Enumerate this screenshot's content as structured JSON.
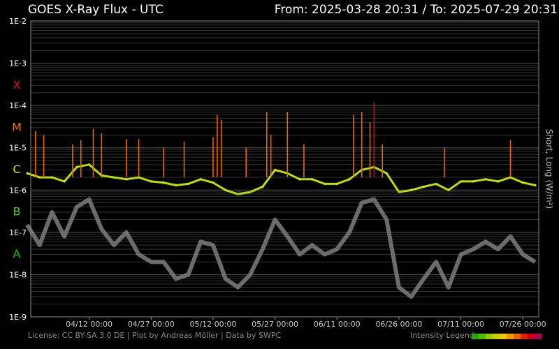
{
  "header": {
    "title": "GOES X-Ray Flux - UTC",
    "range": "From: 2025-03-28 20:31  /  To: 2025-07-29 20:31"
  },
  "footer": {
    "credits": "License: CC BY-SA 3.0 DE | Plot by Andreas Möller | Data by SWPC",
    "legend_label": "Intensity Legend"
  },
  "legend_colors": [
    "#22aa00",
    "#55bb00",
    "#99cc00",
    "#cccc00",
    "#eecc00",
    "#ee9900",
    "#ee6600",
    "#dd2200",
    "#cc0022",
    "#aa0055"
  ],
  "chart_data": {
    "type": "line",
    "title": "GOES X-Ray Flux - UTC",
    "ylabel": "Short, Long (W/m²)",
    "yscale": "log",
    "ylim": [
      1e-09,
      0.01
    ],
    "y_ticks": [
      "1E-2",
      "1E-3",
      "1E-4",
      "1E-5",
      "1E-6",
      "1E-7",
      "1E-8",
      "1E-9"
    ],
    "flare_classes": [
      {
        "label": "X",
        "value": "1e-4",
        "color": "#dd1111"
      },
      {
        "label": "M",
        "value": "1e-5",
        "color": "#ee7700"
      },
      {
        "label": "C",
        "value": "1e-6",
        "color": "#dddd00"
      },
      {
        "label": "B",
        "value": "1e-7",
        "color": "#55cc00"
      },
      {
        "label": "A",
        "value": "1e-8",
        "color": "#22bb00"
      }
    ],
    "xlim": [
      "2025-03-28 20:31",
      "2025-07-29 20:31"
    ],
    "x_ticks": [
      {
        "date": "2025-04-12",
        "label": "04/12 00:00"
      },
      {
        "date": "2025-04-27",
        "label": "04/27 00:00"
      },
      {
        "date": "2025-05-12",
        "label": "05/12 00:00"
      },
      {
        "date": "2025-05-27",
        "label": "05/27 00:00"
      },
      {
        "date": "2025-06-11",
        "label": "06/11 00:00"
      },
      {
        "date": "2025-06-26",
        "label": "06/26 00:00"
      },
      {
        "date": "2025-07-11",
        "label": "07/11 00:00"
      },
      {
        "date": "2025-07-26",
        "label": "07/26 00:00"
      }
    ],
    "series": [
      {
        "name": "Long",
        "dates": [
          "2025-03-28",
          "2025-03-31",
          "2025-04-03",
          "2025-04-06",
          "2025-04-09",
          "2025-04-12",
          "2025-04-15",
          "2025-04-18",
          "2025-04-21",
          "2025-04-24",
          "2025-04-27",
          "2025-04-30",
          "2025-05-03",
          "2025-05-06",
          "2025-05-09",
          "2025-05-12",
          "2025-05-15",
          "2025-05-18",
          "2025-05-21",
          "2025-05-24",
          "2025-05-27",
          "2025-05-30",
          "2025-06-02",
          "2025-06-05",
          "2025-06-08",
          "2025-06-11",
          "2025-06-14",
          "2025-06-17",
          "2025-06-20",
          "2025-06-23",
          "2025-06-26",
          "2025-06-29",
          "2025-07-02",
          "2025-07-05",
          "2025-07-08",
          "2025-07-11",
          "2025-07-14",
          "2025-07-17",
          "2025-07-20",
          "2025-07-23",
          "2025-07-26",
          "2025-07-29"
        ],
        "values": [
          2.5e-06,
          2e-06,
          2e-06,
          1.6e-06,
          3.5e-06,
          4e-06,
          2.2e-06,
          2e-06,
          1.8e-06,
          2e-06,
          1.6e-06,
          1.5e-06,
          1.3e-06,
          1.4e-06,
          1.8e-06,
          1.5e-06,
          1e-06,
          8e-07,
          9e-07,
          1.2e-06,
          3e-06,
          2.5e-06,
          1.8e-06,
          1.8e-06,
          1.4e-06,
          1.4e-06,
          1.8e-06,
          3e-06,
          3.5e-06,
          2.5e-06,
          9e-07,
          1e-06,
          1.2e-06,
          1.4e-06,
          1e-06,
          1.6e-06,
          1.6e-06,
          1.8e-06,
          1.6e-06,
          2e-06,
          1.5e-06,
          1.3e-06
        ]
      },
      {
        "name": "Short",
        "dates": [
          "2025-03-28",
          "2025-03-31",
          "2025-04-03",
          "2025-04-06",
          "2025-04-09",
          "2025-04-12",
          "2025-04-15",
          "2025-04-18",
          "2025-04-21",
          "2025-04-24",
          "2025-04-27",
          "2025-04-30",
          "2025-05-03",
          "2025-05-06",
          "2025-05-09",
          "2025-05-12",
          "2025-05-15",
          "2025-05-18",
          "2025-05-21",
          "2025-05-24",
          "2025-05-27",
          "2025-05-30",
          "2025-06-02",
          "2025-06-05",
          "2025-06-08",
          "2025-06-11",
          "2025-06-14",
          "2025-06-17",
          "2025-06-20",
          "2025-06-23",
          "2025-06-26",
          "2025-06-29",
          "2025-07-02",
          "2025-07-05",
          "2025-07-08",
          "2025-07-11",
          "2025-07-14",
          "2025-07-17",
          "2025-07-20",
          "2025-07-23",
          "2025-07-26",
          "2025-07-29"
        ],
        "values": [
          1.5e-07,
          5e-08,
          3e-07,
          8e-08,
          4e-07,
          6e-07,
          1.2e-07,
          5e-08,
          1e-07,
          3e-08,
          2e-08,
          2e-08,
          8e-09,
          1e-08,
          6e-08,
          5e-08,
          8e-09,
          5e-09,
          1e-08,
          4e-08,
          2e-07,
          8e-08,
          3e-08,
          5e-08,
          3e-08,
          4e-08,
          1e-07,
          5e-07,
          6e-07,
          2e-07,
          5e-09,
          3e-09,
          8e-09,
          2e-08,
          5e-09,
          3e-08,
          4e-08,
          6e-08,
          4e-08,
          8e-08,
          3e-08,
          2e-08
        ]
      }
    ],
    "flares": [
      {
        "date": "2025-03-30",
        "value": 2.5e-05
      },
      {
        "date": "2025-04-01",
        "value": 2e-05
      },
      {
        "date": "2025-04-08",
        "value": 1.2e-05
      },
      {
        "date": "2025-04-10",
        "value": 1.5e-05
      },
      {
        "date": "2025-04-13",
        "value": 2.8e-05
      },
      {
        "date": "2025-04-15",
        "value": 2.2e-05
      },
      {
        "date": "2025-04-21",
        "value": 1.6e-05
      },
      {
        "date": "2025-04-24",
        "value": 1.6e-05
      },
      {
        "date": "2025-04-30",
        "value": 1e-05
      },
      {
        "date": "2025-05-05",
        "value": 1.4e-05
      },
      {
        "date": "2025-05-12",
        "value": 1.8e-05
      },
      {
        "date": "2025-05-13",
        "value": 6e-05
      },
      {
        "date": "2025-05-14",
        "value": 4.5e-05
      },
      {
        "date": "2025-05-20",
        "value": 1e-05
      },
      {
        "date": "2025-05-25",
        "value": 7e-05
      },
      {
        "date": "2025-05-26",
        "value": 2e-05
      },
      {
        "date": "2025-05-30",
        "value": 7e-05
      },
      {
        "date": "2025-06-03",
        "value": 1.2e-05
      },
      {
        "date": "2025-06-15",
        "value": 6e-05
      },
      {
        "date": "2025-06-17",
        "value": 7e-05
      },
      {
        "date": "2025-06-19",
        "value": 4e-05
      },
      {
        "date": "2025-06-20",
        "value": 0.00012
      },
      {
        "date": "2025-06-22",
        "value": 1.2e-05
      },
      {
        "date": "2025-07-07",
        "value": 1e-05
      },
      {
        "date": "2025-07-23",
        "value": 1.5e-05
      }
    ]
  }
}
